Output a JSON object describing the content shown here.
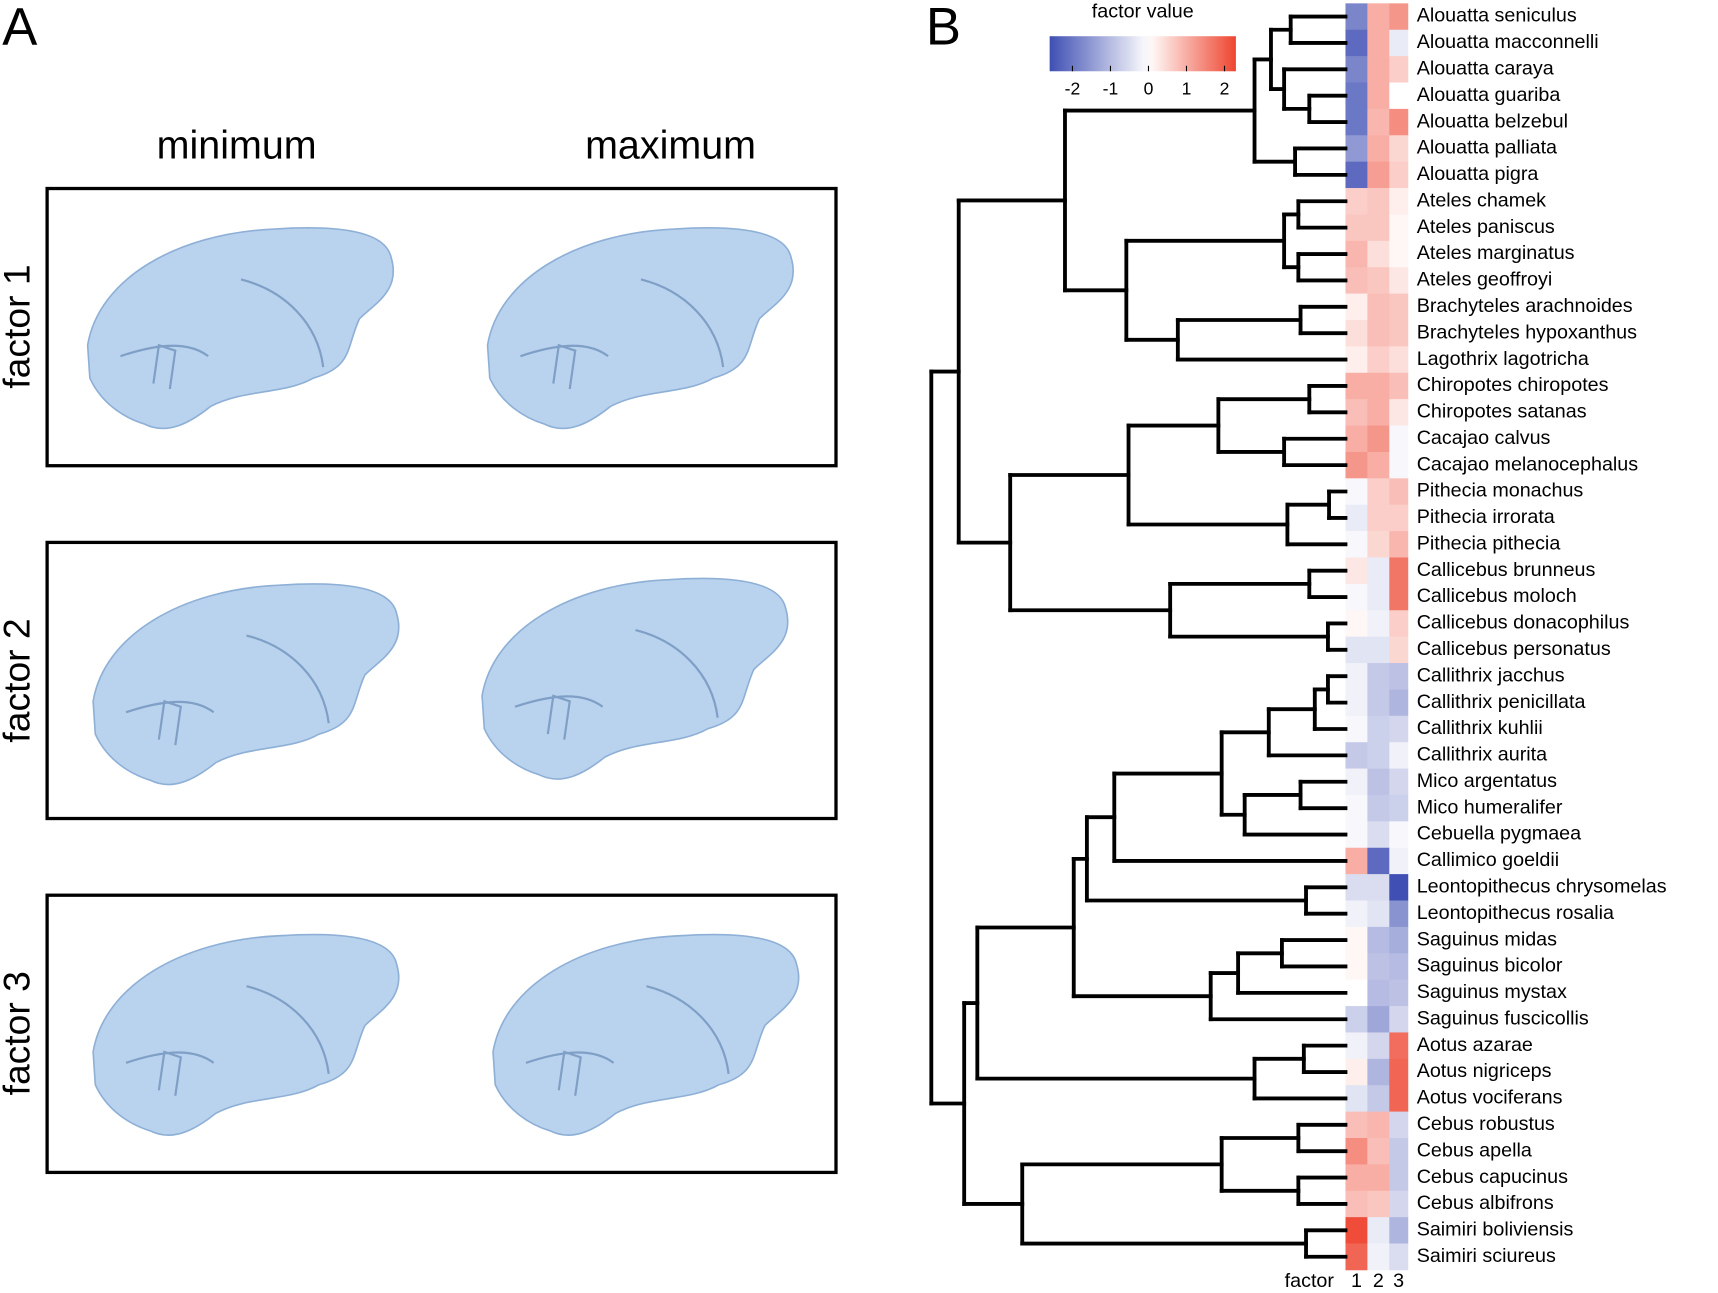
{
  "panel_a": {
    "label": "A",
    "columns": [
      "minimum",
      "maximum"
    ],
    "rows": [
      "factor 1",
      "factor 2",
      "factor 3"
    ]
  },
  "chart_data": {
    "type": "heatmap",
    "label": "B",
    "colorbar_title": "factor value",
    "clim": [
      -2.6,
      2.3
    ],
    "cticks": [
      -2,
      -1,
      0,
      1,
      2
    ],
    "colors": [
      "#3f4fb3",
      "#ffffff",
      "#ee4530"
    ],
    "x_title": "factor",
    "factors": [
      "1",
      "2",
      "3"
    ],
    "rows": [
      "Alouatta seniculus",
      "Alouatta macconnelli",
      "Alouatta caraya",
      "Alouatta guariba",
      "Alouatta belzebul",
      "Alouatta palliata",
      "Alouatta pigra",
      "Ateles chamek",
      "Ateles paniscus",
      "Ateles marginatus",
      "Ateles geoffroyi",
      "Brachyteles arachnoides",
      "Brachyteles hypoxanthus",
      "Lagothrix lagotricha",
      "Chiropotes chiropotes",
      "Chiropotes satanas",
      "Cacajao calvus",
      "Cacajao melanocephalus",
      "Pithecia monachus",
      "Pithecia irrorata",
      "Pithecia pithecia",
      "Callicebus brunneus",
      "Callicebus moloch",
      "Callicebus donacophilus",
      "Callicebus personatus",
      "Callithrix jacchus",
      "Callithrix penicillata",
      "Callithrix kuhlii",
      "Callithrix aurita",
      "Mico argentatus",
      "Mico humeralifer",
      "Cebuella pygmaea",
      "Callimico goeldii",
      "Leontopithecus chrysomelas",
      "Leontopithecus rosalia",
      "Saguinus midas",
      "Saguinus bicolor",
      "Saguinus mystax",
      "Saguinus fuscicollis",
      "Aotus azarae",
      "Aotus nigriceps",
      "Aotus vociferans",
      "Cebus robustus",
      "Cebus apella",
      "Cebus capucinus",
      "Cebus albifrons",
      "Saimiri boliviensis",
      "Saimiri sciureus"
    ],
    "values": [
      [
        -1.8,
        1.0,
        1.3
      ],
      [
        -2.2,
        1.0,
        -0.3
      ],
      [
        -1.8,
        1.0,
        0.6
      ],
      [
        -2.0,
        1.0,
        0.0
      ],
      [
        -2.0,
        0.9,
        1.4
      ],
      [
        -1.5,
        1.0,
        0.5
      ],
      [
        -2.2,
        1.2,
        0.6
      ],
      [
        0.6,
        0.7,
        0.2
      ],
      [
        0.7,
        0.7,
        0.1
      ],
      [
        0.9,
        0.4,
        0.1
      ],
      [
        0.8,
        0.7,
        0.3
      ],
      [
        0.2,
        0.8,
        0.7
      ],
      [
        0.4,
        0.8,
        0.7
      ],
      [
        0.2,
        0.6,
        0.4
      ],
      [
        1.0,
        1.0,
        0.8
      ],
      [
        0.8,
        1.0,
        0.3
      ],
      [
        1.0,
        1.3,
        -0.1
      ],
      [
        1.3,
        1.0,
        -0.1
      ],
      [
        -0.1,
        0.6,
        0.8
      ],
      [
        -0.3,
        0.6,
        0.6
      ],
      [
        -0.1,
        0.5,
        0.9
      ],
      [
        0.3,
        -0.3,
        1.7
      ],
      [
        -0.1,
        -0.3,
        1.7
      ],
      [
        0.1,
        -0.2,
        0.6
      ],
      [
        -0.4,
        -0.4,
        0.5
      ],
      [
        -0.2,
        -0.8,
        -0.9
      ],
      [
        -0.2,
        -0.8,
        -1.1
      ],
      [
        -0.1,
        -0.7,
        -0.6
      ],
      [
        -0.8,
        -0.7,
        -0.2
      ],
      [
        -0.2,
        -0.9,
        -0.6
      ],
      [
        -0.1,
        -0.8,
        -0.7
      ],
      [
        -0.1,
        -0.5,
        -0.1
      ],
      [
        1.0,
        -2.2,
        -0.2
      ],
      [
        -0.5,
        -0.5,
        -2.6
      ],
      [
        -0.2,
        -0.4,
        -1.6
      ],
      [
        0.1,
        -1.0,
        -1.2
      ],
      [
        0.1,
        -0.9,
        -1.0
      ],
      [
        0.0,
        -1.0,
        -0.9
      ],
      [
        -0.7,
        -1.3,
        -0.6
      ],
      [
        -0.2,
        -0.6,
        1.8
      ],
      [
        0.2,
        -1.1,
        1.9
      ],
      [
        -0.4,
        -0.8,
        1.9
      ],
      [
        0.8,
        0.9,
        -0.6
      ],
      [
        1.4,
        0.8,
        -0.8
      ],
      [
        1.0,
        1.0,
        -0.8
      ],
      [
        0.8,
        0.7,
        -0.6
      ],
      [
        2.2,
        -0.3,
        -1.1
      ],
      [
        1.9,
        -0.2,
        -0.5
      ]
    ]
  }
}
